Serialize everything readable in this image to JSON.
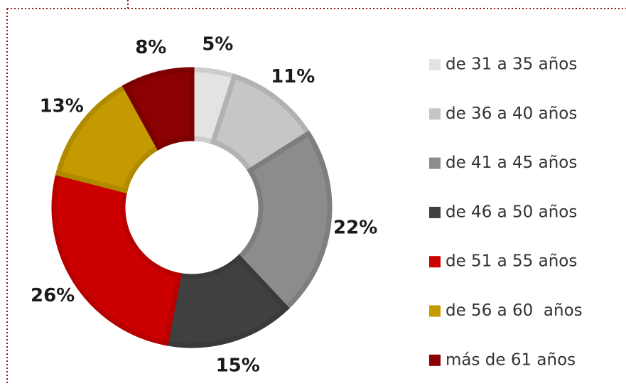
{
  "chart_data": {
    "type": "donut",
    "categories": [
      "de 31 a 35 años",
      "de 36 a 40 años",
      "de 41 a 45 años",
      "de 46 a 50 años",
      "de 51 a 55 años",
      "de 56 a 60  años",
      "más de 61 años"
    ],
    "values": [
      5,
      11,
      22,
      15,
      26,
      13,
      8
    ],
    "value_labels": [
      "5%",
      "11%",
      "22%",
      "15%",
      "26%",
      "13%",
      "8%"
    ],
    "colors": [
      "#e3e3e3",
      "#c6c6c6",
      "#8c8c8c",
      "#404040",
      "#cc0000",
      "#c49a00",
      "#8b0000"
    ],
    "legend": "right"
  }
}
